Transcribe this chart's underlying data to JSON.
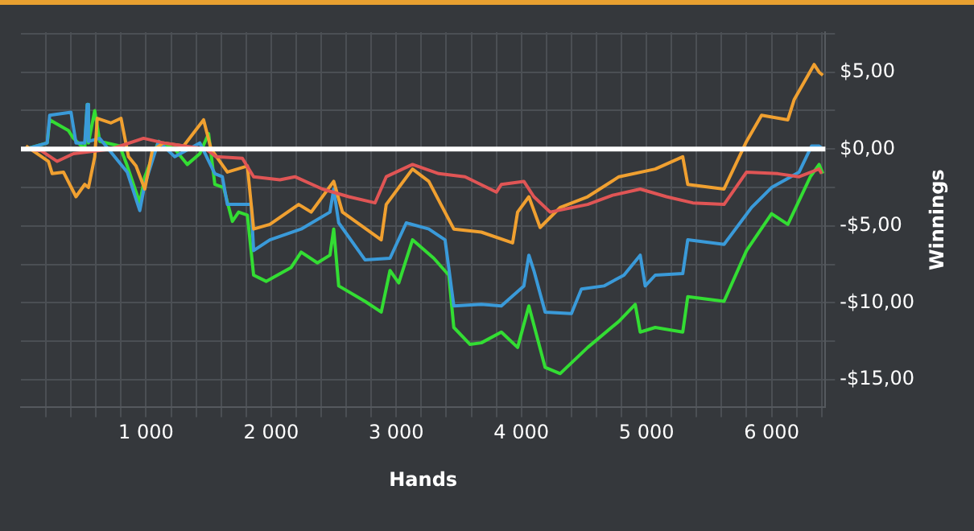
{
  "chart_data": {
    "type": "line",
    "xlabel": "Hands",
    "ylabel": "Winnings",
    "xlim": [
      0,
      6430
    ],
    "ylim": [
      -16.8,
      7.6
    ],
    "xticks": [
      {
        "value": 200,
        "label": null
      },
      {
        "value": 400,
        "label": null
      },
      {
        "value": 600,
        "label": null
      },
      {
        "value": 800,
        "label": null
      },
      {
        "value": 1000,
        "label": "1 000"
      },
      {
        "value": 1200,
        "label": null
      },
      {
        "value": 1400,
        "label": null
      },
      {
        "value": 1600,
        "label": null
      },
      {
        "value": 1800,
        "label": null
      },
      {
        "value": 2000,
        "label": "2 000"
      },
      {
        "value": 2200,
        "label": null
      },
      {
        "value": 2400,
        "label": null
      },
      {
        "value": 2600,
        "label": null
      },
      {
        "value": 2800,
        "label": null
      },
      {
        "value": 3000,
        "label": "3 000"
      },
      {
        "value": 3200,
        "label": null
      },
      {
        "value": 3400,
        "label": null
      },
      {
        "value": 3600,
        "label": null
      },
      {
        "value": 3800,
        "label": null
      },
      {
        "value": 4000,
        "label": "4 000"
      },
      {
        "value": 4200,
        "label": null
      },
      {
        "value": 4400,
        "label": null
      },
      {
        "value": 4600,
        "label": null
      },
      {
        "value": 4800,
        "label": null
      },
      {
        "value": 5000,
        "label": "5 000"
      },
      {
        "value": 5200,
        "label": null
      },
      {
        "value": 5400,
        "label": null
      },
      {
        "value": 5600,
        "label": null
      },
      {
        "value": 5800,
        "label": null
      },
      {
        "value": 6000,
        "label": "6 000"
      },
      {
        "value": 6200,
        "label": null
      },
      {
        "value": 6400,
        "label": null
      }
    ],
    "yticks": [
      {
        "value": -15,
        "label": "-$15,00"
      },
      {
        "value": -12.5,
        "label": null
      },
      {
        "value": -10,
        "label": "-$10,00"
      },
      {
        "value": -7.5,
        "label": null
      },
      {
        "value": -5,
        "label": "-$5,00"
      },
      {
        "value": -2.5,
        "label": null
      },
      {
        "value": 0,
        "label": "$0,00"
      },
      {
        "value": 2.5,
        "label": null
      },
      {
        "value": 5,
        "label": "$5,00"
      },
      {
        "value": 7.5,
        "label": null
      }
    ],
    "grid": true,
    "legend": false,
    "marker": "none",
    "line_style": "solid",
    "ref_lines": [
      {
        "axis": "y",
        "value": 0,
        "color": "#ffffff"
      }
    ],
    "series": [
      {
        "color": "#e05555",
        "x": [
          40,
          160,
          290,
          420,
          720,
          980,
          1140,
          1480,
          1560,
          1770,
          1860,
          2070,
          2190,
          2410,
          2620,
          2830,
          2920,
          3130,
          3340,
          3550,
          3800,
          3840,
          4020,
          4100,
          4230,
          4530,
          4730,
          4950,
          5160,
          5370,
          5620,
          5800,
          6050,
          6220,
          6380,
          6400
        ],
        "values": [
          0,
          -0.1,
          -0.8,
          -0.3,
          0,
          0.7,
          0.4,
          0,
          -0.5,
          -0.6,
          -1.8,
          -2,
          -1.8,
          -2.6,
          -3.1,
          -3.5,
          -1.8,
          -1,
          -1.6,
          -1.8,
          -2.8,
          -2.3,
          -2.1,
          -3.1,
          -4.1,
          -3.6,
          -3,
          -2.6,
          -3.1,
          -3.5,
          -3.6,
          -1.5,
          -1.6,
          -1.8,
          -1.3,
          -1.6
        ]
      },
      {
        "color": "#f0a030",
        "x": [
          40,
          220,
          250,
          340,
          440,
          510,
          540,
          590,
          610,
          720,
          800,
          860,
          920,
          990,
          1050,
          1140,
          1300,
          1460,
          1520,
          1650,
          1810,
          1860,
          1990,
          2220,
          2320,
          2500,
          2570,
          2880,
          2920,
          3130,
          3260,
          3460,
          3680,
          3930,
          3970,
          4060,
          4150,
          4310,
          4530,
          4780,
          5070,
          5290,
          5330,
          5620,
          5800,
          5920,
          6130,
          6180,
          6340,
          6380,
          6410
        ],
        "values": [
          0.2,
          -0.8,
          -1.6,
          -1.5,
          -3.1,
          -2.3,
          -2.5,
          -0.5,
          2,
          1.7,
          2,
          -0.5,
          -1.1,
          -2.6,
          -0.1,
          0.4,
          0.2,
          1.9,
          0,
          -1.5,
          -1.1,
          -5.2,
          -4.9,
          -3.6,
          -4.1,
          -2.1,
          -4.1,
          -5.9,
          -3.6,
          -1.3,
          -2.1,
          -5.2,
          -5.4,
          -6.1,
          -4.1,
          -3.1,
          -5.1,
          -3.8,
          -3.1,
          -1.8,
          -1.3,
          -0.5,
          -2.3,
          -2.6,
          0.5,
          2.2,
          1.9,
          3.2,
          5.5,
          5,
          4.8
        ]
      },
      {
        "color": "#3a9ad9",
        "x": [
          40,
          210,
          230,
          400,
          440,
          510,
          530,
          540,
          630,
          850,
          950,
          990,
          1100,
          1230,
          1430,
          1550,
          1610,
          1650,
          1840,
          1860,
          1990,
          2240,
          2470,
          2500,
          2540,
          2750,
          2950,
          3080,
          3260,
          3390,
          3460,
          3680,
          3840,
          4020,
          4060,
          4100,
          4190,
          4400,
          4480,
          4660,
          4820,
          4950,
          4990,
          5070,
          5290,
          5330,
          5620,
          5840,
          6000,
          6220,
          6320,
          6380,
          6410
        ],
        "values": [
          0,
          0.4,
          2.2,
          2.4,
          0.4,
          0.4,
          2.9,
          0.5,
          0.7,
          -1.5,
          -4,
          -2.3,
          0.5,
          -0.5,
          0.4,
          -1.6,
          -1.8,
          -3.6,
          -3.6,
          -6.6,
          -5.9,
          -5.2,
          -4.1,
          -2.6,
          -4.8,
          -7.2,
          -7.1,
          -4.8,
          -5.2,
          -5.9,
          -10.2,
          -10.1,
          -10.2,
          -8.9,
          -6.9,
          -7.9,
          -10.6,
          -10.7,
          -9.1,
          -8.9,
          -8.2,
          -6.9,
          -8.9,
          -8.2,
          -8.1,
          -5.9,
          -6.2,
          -3.8,
          -2.5,
          -1.5,
          0.2,
          0.2,
          0
        ]
      },
      {
        "color": "#33dd33",
        "x": [
          40,
          210,
          230,
          380,
          420,
          510,
          530,
          540,
          590,
          630,
          790,
          850,
          950,
          990,
          1100,
          1230,
          1330,
          1430,
          1500,
          1550,
          1620,
          1690,
          1740,
          1810,
          1860,
          1960,
          2160,
          2240,
          2370,
          2470,
          2500,
          2540,
          2750,
          2880,
          2950,
          3020,
          3130,
          3300,
          3420,
          3460,
          3590,
          3680,
          3840,
          3970,
          4060,
          4190,
          4310,
          4530,
          4780,
          4910,
          4950,
          5070,
          5290,
          5330,
          5620,
          5800,
          6000,
          6130,
          6310,
          6380,
          6410
        ],
        "values": [
          0,
          0.4,
          1.9,
          1.2,
          0.7,
          0,
          2.9,
          0.4,
          2.5,
          0.5,
          0.2,
          -1.1,
          -3.5,
          -1.8,
          0.5,
          0,
          -1,
          -0.3,
          1,
          -2.3,
          -2.5,
          -4.7,
          -4.1,
          -4.3,
          -8.2,
          -8.6,
          -7.7,
          -6.7,
          -7.4,
          -6.9,
          -5.2,
          -8.9,
          -9.9,
          -10.6,
          -7.9,
          -8.7,
          -5.9,
          -7.1,
          -8.2,
          -11.6,
          -12.7,
          -12.6,
          -11.9,
          -12.9,
          -10.2,
          -14.2,
          -14.6,
          -12.9,
          -11.2,
          -10.1,
          -11.9,
          -11.6,
          -11.9,
          -9.6,
          -9.9,
          -6.6,
          -4.2,
          -4.9,
          -1.8,
          -1,
          -1.6
        ]
      }
    ]
  }
}
